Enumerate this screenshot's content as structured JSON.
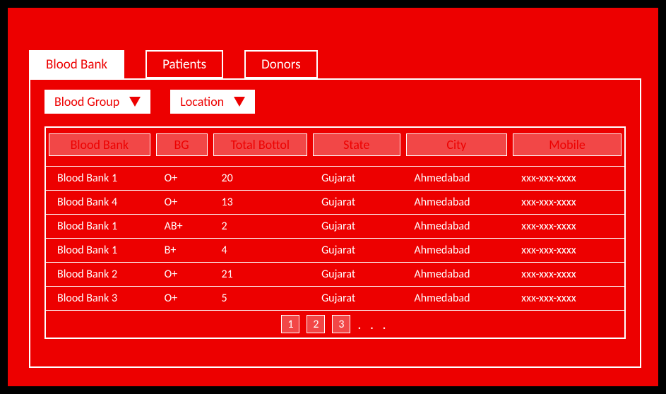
{
  "colors": {
    "background": "#ed0000",
    "frame_border": "#000000",
    "text_white": "#ffffff",
    "accent": "#ed0000",
    "header_cell_bg": "rgba(255,255,255,0.28)"
  },
  "tabs": [
    {
      "label": "Blood Bank",
      "active": true
    },
    {
      "label": "Patients",
      "active": false
    },
    {
      "label": "Donors",
      "active": false
    }
  ],
  "filters": {
    "blood_group": {
      "label": "Blood Group"
    },
    "location": {
      "label": "Location"
    }
  },
  "table": {
    "columns": [
      "Blood Bank",
      "BG",
      "Total Bottol",
      "State",
      "City",
      "Mobile"
    ],
    "rows": [
      [
        "Blood Bank 1",
        "O+",
        "20",
        "Gujarat",
        "Ahmedabad",
        "xxx-xxx-xxxx"
      ],
      [
        "Blood Bank 4",
        "O+",
        "13",
        "Gujarat",
        "Ahmedabad",
        "xxx-xxx-xxxx"
      ],
      [
        "Blood Bank 1",
        "AB+",
        "2",
        "Gujarat",
        "Ahmedabad",
        "xxx-xxx-xxxx"
      ],
      [
        "Blood Bank 1",
        "B+",
        "4",
        "Gujarat",
        "Ahmedabad",
        "xxx-xxx-xxxx"
      ],
      [
        "Blood Bank 2",
        "O+",
        "21",
        "Gujarat",
        "Ahmedabad",
        "xxx-xxx-xxxx"
      ],
      [
        "Blood Bank 3",
        "O+",
        "5",
        "Gujarat",
        "Ahmedabad",
        "xxx-xxx-xxxx"
      ]
    ]
  },
  "pager": {
    "pages": [
      "1",
      "2",
      "3"
    ],
    "ellipsis": ". . ."
  }
}
